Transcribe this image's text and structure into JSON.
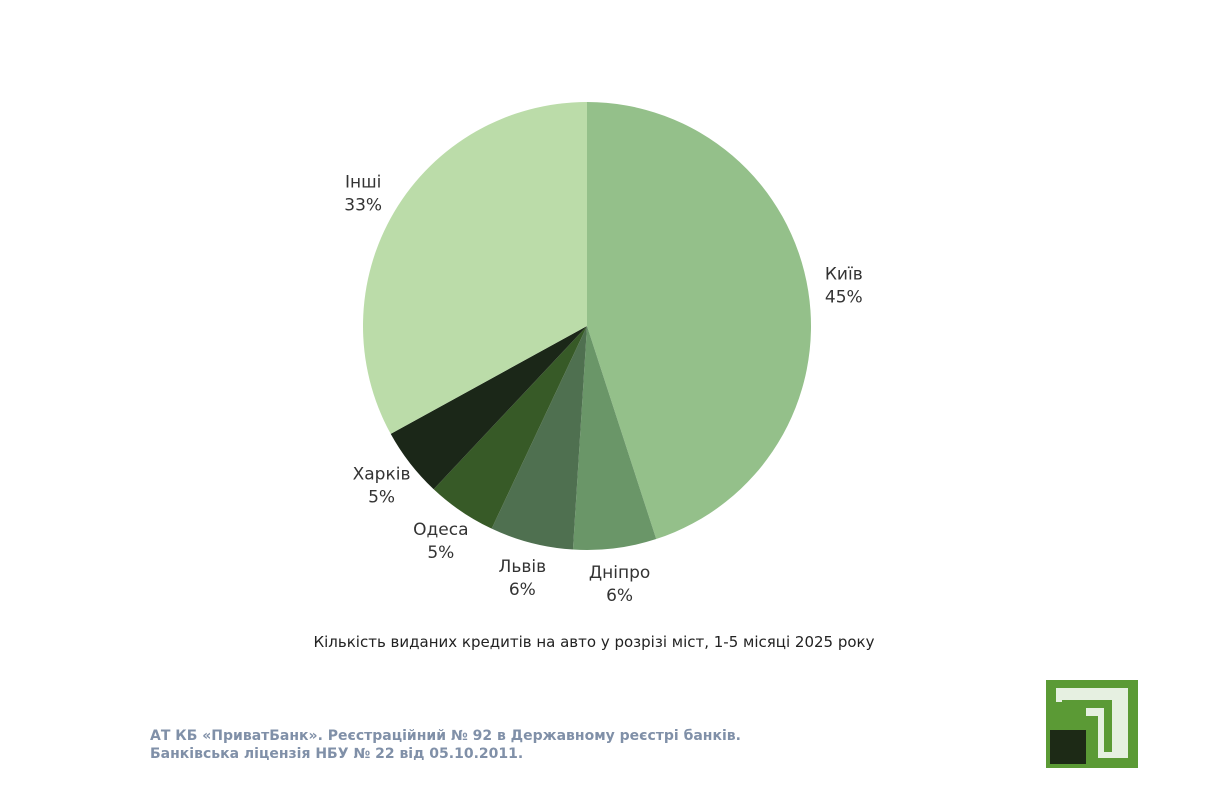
{
  "chart_data": {
    "type": "pie",
    "caption": "Кількість виданих кредитів на авто у розрізі міст,  1-5 місяці 2025 року",
    "categories": [
      "Київ",
      "Дніпро",
      "Львів",
      "Одеса",
      "Харків",
      "Інші"
    ],
    "values": [
      45,
      6,
      6,
      5,
      5,
      33
    ],
    "value_labels": [
      "45%",
      "6%",
      "6%",
      "5%",
      "5%",
      "33%"
    ],
    "colors": [
      "#94c08a",
      "#6a9668",
      "#4f7050",
      "#375a27",
      "#1b2718",
      "#bbdca9"
    ]
  },
  "footer": {
    "lines": [
      "АТ КБ «ПриватБанк». Реєстраційний № 92 в Державному реєстрі банків.",
      "Банківська ліцензія НБУ № 22 від 05.10.2011."
    ]
  }
}
